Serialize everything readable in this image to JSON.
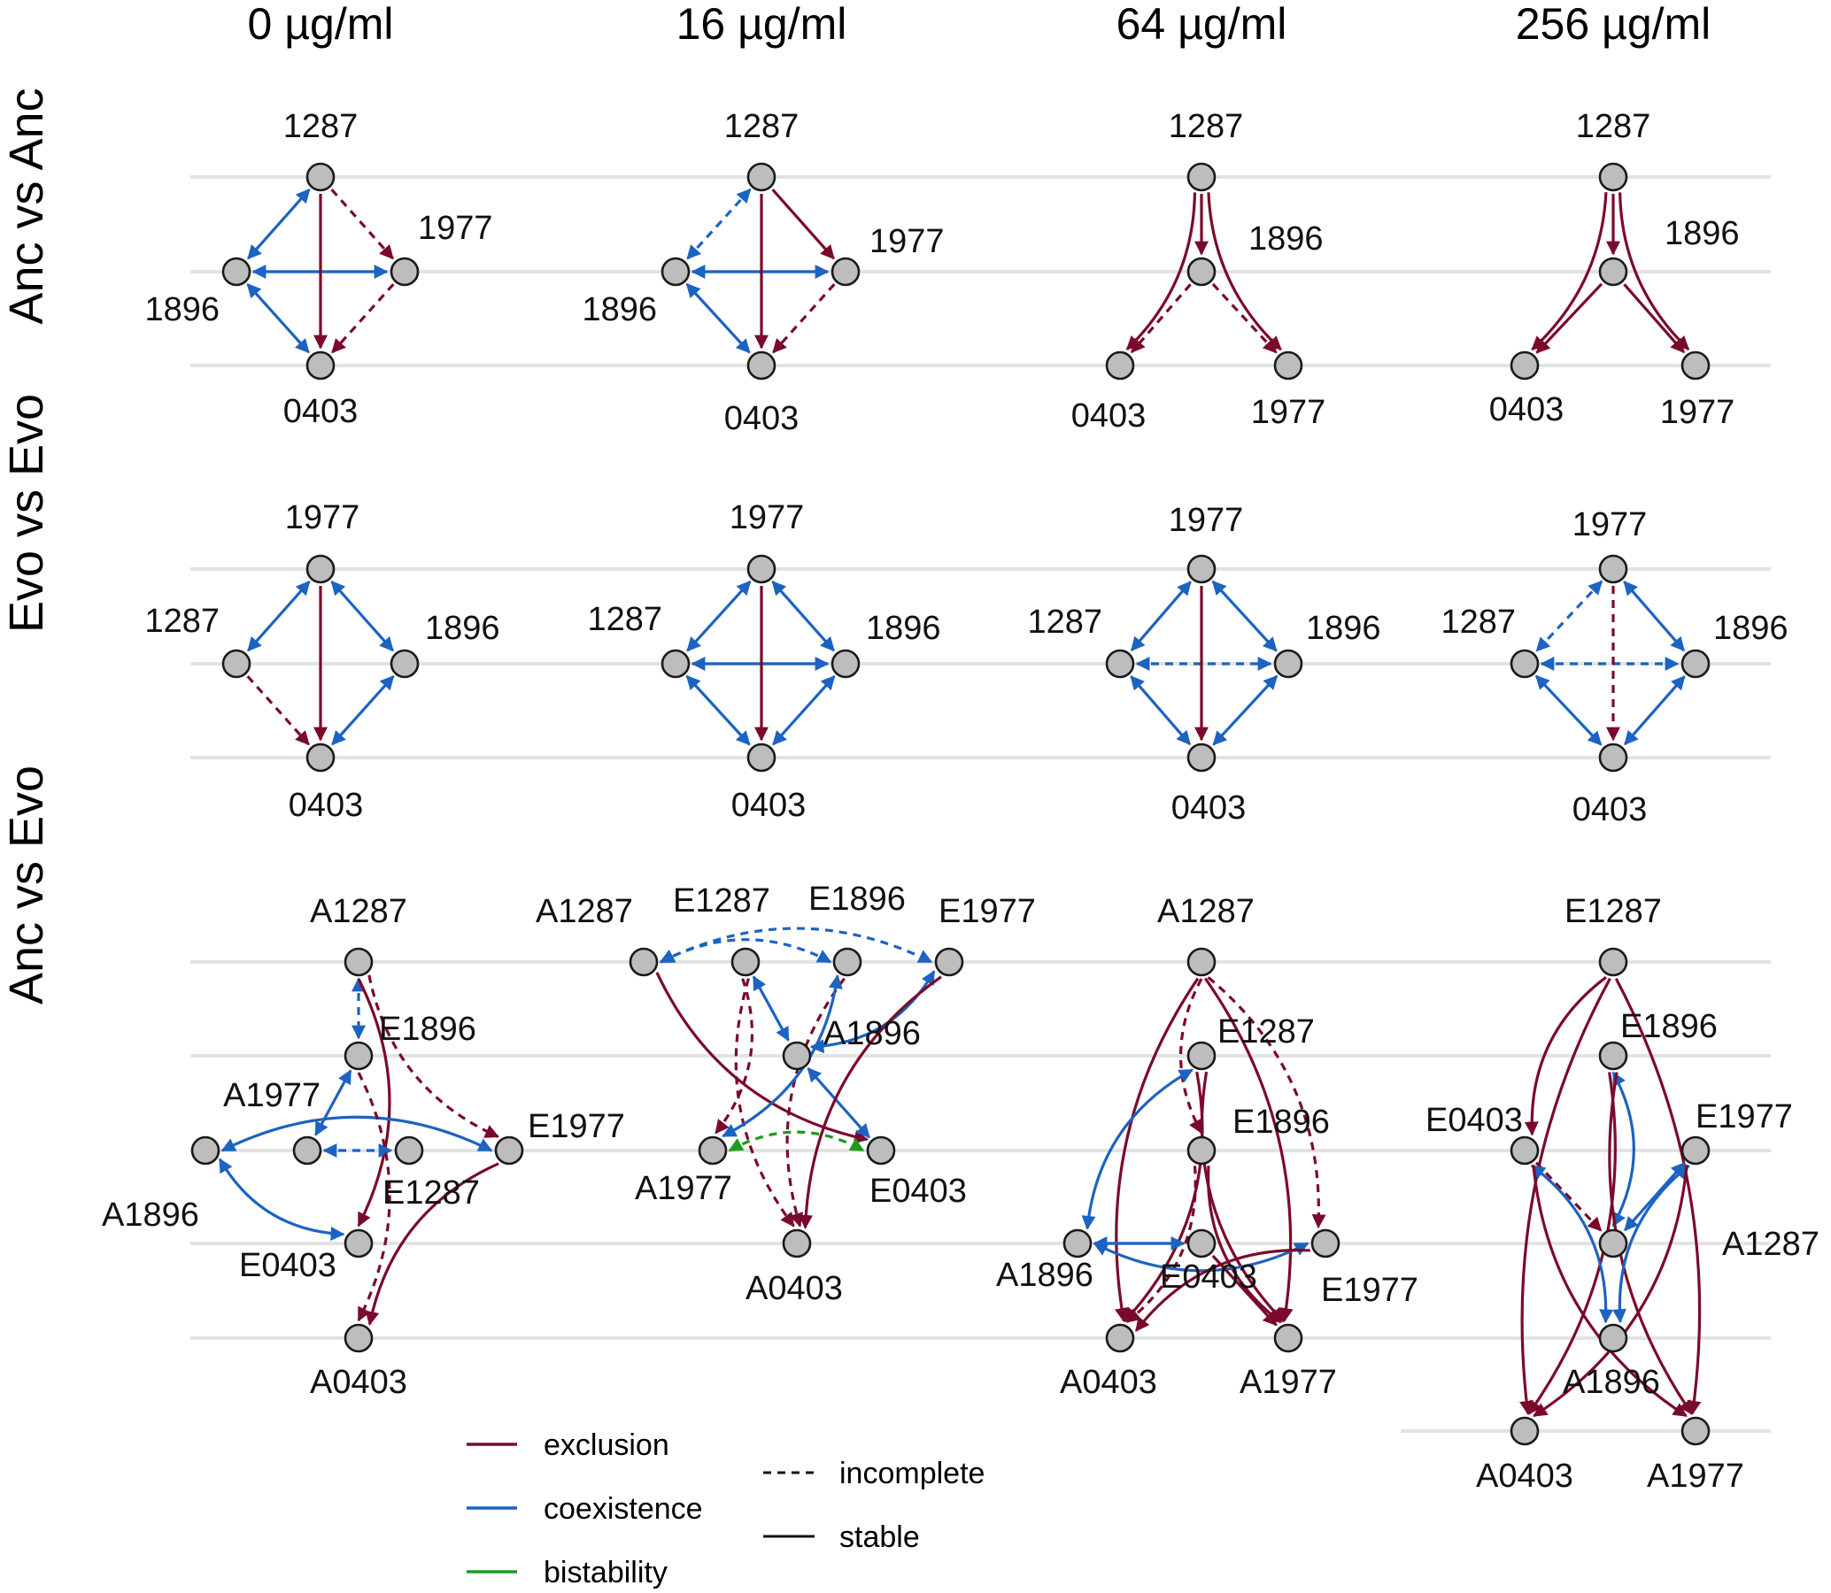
{
  "colors": {
    "exclusion": "#7b0a2a",
    "coexistence": "#1c63c2",
    "bistability": "#1e9a1e"
  },
  "columns": [
    "0 µg/ml",
    "16 µg/ml",
    "64 µg/ml",
    "256 µg/ml"
  ],
  "rows": [
    "Anc vs Anc",
    "Evo vs Evo",
    "Anc vs Evo"
  ],
  "legend": {
    "outcomes": [
      {
        "key": "exclusion",
        "label": "exclusion"
      },
      {
        "key": "coexistence",
        "label": "coexistence"
      },
      {
        "key": "bistability",
        "label": "bistability"
      }
    ],
    "styles": [
      {
        "key": "incomplete",
        "label": "incomplete"
      },
      {
        "key": "stable",
        "label": "stable"
      }
    ]
  },
  "panels": [
    {
      "row": 0,
      "col": 0,
      "nodes": [
        "1287",
        "1977",
        "1896",
        "0403"
      ],
      "edges": [
        {
          "from": "1287",
          "to": "1896",
          "type": "coexistence",
          "style": "stable"
        },
        {
          "from": "1896",
          "to": "1977",
          "type": "coexistence",
          "style": "stable"
        },
        {
          "from": "1896",
          "to": "0403",
          "type": "coexistence",
          "style": "stable"
        },
        {
          "from": "1287",
          "to": "0403",
          "type": "exclusion",
          "style": "stable"
        },
        {
          "from": "1287",
          "to": "1977",
          "type": "exclusion",
          "style": "incomplete"
        },
        {
          "from": "1977",
          "to": "0403",
          "type": "exclusion",
          "style": "incomplete"
        }
      ]
    },
    {
      "row": 0,
      "col": 1,
      "nodes": [
        "1287",
        "1977",
        "1896",
        "0403"
      ],
      "edges": [
        {
          "from": "1287",
          "to": "1896",
          "type": "coexistence",
          "style": "incomplete"
        },
        {
          "from": "1896",
          "to": "1977",
          "type": "coexistence",
          "style": "stable"
        },
        {
          "from": "1896",
          "to": "0403",
          "type": "coexistence",
          "style": "stable"
        },
        {
          "from": "1287",
          "to": "0403",
          "type": "exclusion",
          "style": "stable"
        },
        {
          "from": "1287",
          "to": "1977",
          "type": "exclusion",
          "style": "stable"
        },
        {
          "from": "1977",
          "to": "0403",
          "type": "exclusion",
          "style": "incomplete"
        }
      ]
    },
    {
      "row": 0,
      "col": 2,
      "nodes": [
        "1287",
        "1896",
        "0403",
        "1977"
      ],
      "edges": [
        {
          "from": "1287",
          "to": "1896",
          "type": "exclusion",
          "style": "stable"
        },
        {
          "from": "1287",
          "to": "0403",
          "type": "exclusion",
          "style": "stable"
        },
        {
          "from": "1287",
          "to": "1977",
          "type": "exclusion",
          "style": "stable"
        },
        {
          "from": "1896",
          "to": "0403",
          "type": "exclusion",
          "style": "incomplete"
        },
        {
          "from": "1896",
          "to": "1977",
          "type": "exclusion",
          "style": "incomplete"
        }
      ]
    },
    {
      "row": 0,
      "col": 3,
      "nodes": [
        "1287",
        "1896",
        "0403",
        "1977"
      ],
      "edges": [
        {
          "from": "1287",
          "to": "1896",
          "type": "exclusion",
          "style": "stable"
        },
        {
          "from": "1287",
          "to": "0403",
          "type": "exclusion",
          "style": "stable"
        },
        {
          "from": "1287",
          "to": "1977",
          "type": "exclusion",
          "style": "stable"
        },
        {
          "from": "1896",
          "to": "0403",
          "type": "exclusion",
          "style": "stable"
        },
        {
          "from": "1896",
          "to": "1977",
          "type": "exclusion",
          "style": "stable"
        }
      ]
    },
    {
      "row": 1,
      "col": 0,
      "nodes": [
        "1977",
        "1287",
        "1896",
        "0403"
      ],
      "edges": [
        {
          "from": "1977",
          "to": "1287",
          "type": "coexistence",
          "style": "stable"
        },
        {
          "from": "1977",
          "to": "1896",
          "type": "coexistence",
          "style": "stable"
        },
        {
          "from": "1977",
          "to": "0403",
          "type": "exclusion",
          "style": "stable"
        },
        {
          "from": "1896",
          "to": "0403",
          "type": "coexistence",
          "style": "stable"
        },
        {
          "from": "1287",
          "to": "0403",
          "type": "exclusion",
          "style": "incomplete"
        }
      ]
    },
    {
      "row": 1,
      "col": 1,
      "nodes": [
        "1977",
        "1287",
        "1896",
        "0403"
      ],
      "edges": [
        {
          "from": "1977",
          "to": "1287",
          "type": "coexistence",
          "style": "stable"
        },
        {
          "from": "1977",
          "to": "1896",
          "type": "coexistence",
          "style": "stable"
        },
        {
          "from": "1287",
          "to": "1896",
          "type": "coexistence",
          "style": "stable"
        },
        {
          "from": "1977",
          "to": "0403",
          "type": "exclusion",
          "style": "stable"
        },
        {
          "from": "1287",
          "to": "0403",
          "type": "coexistence",
          "style": "stable"
        },
        {
          "from": "1896",
          "to": "0403",
          "type": "coexistence",
          "style": "stable"
        }
      ]
    },
    {
      "row": 1,
      "col": 2,
      "nodes": [
        "1977",
        "1287",
        "1896",
        "0403"
      ],
      "edges": [
        {
          "from": "1977",
          "to": "1287",
          "type": "coexistence",
          "style": "stable"
        },
        {
          "from": "1977",
          "to": "1896",
          "type": "coexistence",
          "style": "stable"
        },
        {
          "from": "1287",
          "to": "1896",
          "type": "coexistence",
          "style": "incomplete"
        },
        {
          "from": "1977",
          "to": "0403",
          "type": "exclusion",
          "style": "stable"
        },
        {
          "from": "1287",
          "to": "0403",
          "type": "coexistence",
          "style": "stable"
        },
        {
          "from": "1896",
          "to": "0403",
          "type": "coexistence",
          "style": "stable"
        }
      ]
    },
    {
      "row": 1,
      "col": 3,
      "nodes": [
        "1977",
        "1287",
        "1896",
        "0403"
      ],
      "edges": [
        {
          "from": "1977",
          "to": "1287",
          "type": "coexistence",
          "style": "incomplete"
        },
        {
          "from": "1977",
          "to": "1896",
          "type": "coexistence",
          "style": "stable"
        },
        {
          "from": "1287",
          "to": "1896",
          "type": "coexistence",
          "style": "incomplete"
        },
        {
          "from": "1977",
          "to": "0403",
          "type": "exclusion",
          "style": "incomplete"
        },
        {
          "from": "1287",
          "to": "0403",
          "type": "coexistence",
          "style": "stable"
        },
        {
          "from": "1896",
          "to": "0403",
          "type": "coexistence",
          "style": "stable"
        }
      ]
    },
    {
      "row": 2,
      "col": 0,
      "nodes": [
        "A1287",
        "E1896",
        "A1977",
        "A1896",
        "E1977",
        "E1287",
        "E0403",
        "A0403"
      ],
      "edges": [
        {
          "from": "A1287",
          "to": "E1896",
          "type": "coexistence",
          "style": "incomplete"
        },
        {
          "from": "A1287",
          "to": "E0403",
          "type": "exclusion",
          "style": "stable"
        },
        {
          "from": "A1287",
          "to": "E1977",
          "type": "exclusion",
          "style": "incomplete"
        },
        {
          "from": "E1896",
          "to": "A1977",
          "type": "coexistence",
          "style": "stable"
        },
        {
          "from": "A1977",
          "to": "E1287",
          "type": "coexistence",
          "style": "incomplete"
        },
        {
          "from": "A1896",
          "to": "E1977",
          "type": "coexistence",
          "style": "stable"
        },
        {
          "from": "A1896",
          "to": "E0403",
          "type": "coexistence",
          "style": "stable"
        },
        {
          "from": "E1896",
          "to": "A0403",
          "type": "exclusion",
          "style": "incomplete"
        },
        {
          "from": "E1977",
          "to": "A0403",
          "type": "exclusion",
          "style": "stable"
        }
      ]
    },
    {
      "row": 2,
      "col": 1,
      "nodes": [
        "A1287",
        "E1287",
        "E1896",
        "E1977",
        "A1896",
        "A1977",
        "E0403",
        "A0403"
      ],
      "edges": [
        {
          "from": "E1896",
          "to": "A1287",
          "type": "coexistence",
          "style": "incomplete"
        },
        {
          "from": "A1287",
          "to": "E1977",
          "type": "coexistence",
          "style": "incomplete"
        },
        {
          "from": "A1287",
          "to": "E0403",
          "type": "exclusion",
          "style": "stable"
        },
        {
          "from": "E1287",
          "to": "A1977",
          "type": "exclusion",
          "style": "incomplete"
        },
        {
          "from": "E1287",
          "to": "A0403",
          "type": "exclusion",
          "style": "incomplete"
        },
        {
          "from": "E1287",
          "to": "A1896",
          "type": "coexistence",
          "style": "stable"
        },
        {
          "from": "E1896",
          "to": "A0403",
          "type": "exclusion",
          "style": "incomplete"
        },
        {
          "from": "E1896",
          "to": "A1977",
          "type": "coexistence",
          "style": "stable"
        },
        {
          "from": "A1896",
          "to": "E1977",
          "type": "coexistence",
          "style": "stable"
        },
        {
          "from": "A1896",
          "to": "E0403",
          "type": "coexistence",
          "style": "stable"
        },
        {
          "from": "E1977",
          "to": "A0403",
          "type": "exclusion",
          "style": "stable"
        },
        {
          "from": "A1977",
          "to": "E0403",
          "type": "bistability",
          "style": "incomplete"
        }
      ]
    },
    {
      "row": 2,
      "col": 2,
      "nodes": [
        "A1287",
        "E1287",
        "E1896",
        "A1896",
        "E0403",
        "E1977",
        "A0403",
        "A1977"
      ],
      "edges": [
        {
          "from": "A1287",
          "to": "A0403",
          "type": "exclusion",
          "style": "stable"
        },
        {
          "from": "A1287",
          "to": "A1977",
          "type": "exclusion",
          "style": "stable"
        },
        {
          "from": "A1287",
          "to": "E1896",
          "type": "exclusion",
          "style": "incomplete"
        },
        {
          "from": "A1287",
          "to": "E1977",
          "type": "exclusion",
          "style": "incomplete"
        },
        {
          "from": "E1287",
          "to": "A1896",
          "type": "coexistence",
          "style": "stable"
        },
        {
          "from": "E1287",
          "to": "A0403",
          "type": "exclusion",
          "style": "stable"
        },
        {
          "from": "E1287",
          "to": "A1977",
          "type": "exclusion",
          "style": "stable"
        },
        {
          "from": "E1896",
          "to": "A0403",
          "type": "exclusion",
          "style": "incomplete"
        },
        {
          "from": "E1896",
          "to": "A1977",
          "type": "exclusion",
          "style": "stable"
        },
        {
          "from": "A1896",
          "to": "E0403",
          "type": "coexistence",
          "style": "stable"
        },
        {
          "from": "A1896",
          "to": "E1977",
          "type": "coexistence",
          "style": "stable"
        },
        {
          "from": "E0403",
          "to": "A1977",
          "type": "exclusion",
          "style": "stable"
        },
        {
          "from": "E1977",
          "to": "A0403",
          "type": "exclusion",
          "style": "stable"
        }
      ]
    },
    {
      "row": 2,
      "col": 3,
      "nodes": [
        "E1287",
        "E1896",
        "E0403",
        "E1977",
        "A1287",
        "A1896",
        "A0403",
        "A1977"
      ],
      "edges": [
        {
          "from": "E1287",
          "to": "A0403",
          "type": "exclusion",
          "style": "stable"
        },
        {
          "from": "E1287",
          "to": "A1977",
          "type": "exclusion",
          "style": "stable"
        },
        {
          "from": "E1287",
          "to": "E0403",
          "type": "exclusion",
          "style": "stable"
        },
        {
          "from": "E1896",
          "to": "A1287",
          "type": "coexistence",
          "style": "stable"
        },
        {
          "from": "E1896",
          "to": "A1977",
          "type": "exclusion",
          "style": "stable"
        },
        {
          "from": "E1896",
          "to": "A0403",
          "type": "exclusion",
          "style": "stable"
        },
        {
          "from": "E0403",
          "to": "A1287",
          "type": "exclusion",
          "style": "incomplete"
        },
        {
          "from": "E0403",
          "to": "A1896",
          "type": "coexistence",
          "style": "stable"
        },
        {
          "from": "E0403",
          "to": "A1977",
          "type": "exclusion",
          "style": "stable"
        },
        {
          "from": "E1977",
          "to": "A1287",
          "type": "coexistence",
          "style": "stable"
        },
        {
          "from": "E1977",
          "to": "A1896",
          "type": "coexistence",
          "style": "stable"
        },
        {
          "from": "E1977",
          "to": "A0403",
          "type": "exclusion",
          "style": "stable"
        }
      ]
    }
  ]
}
